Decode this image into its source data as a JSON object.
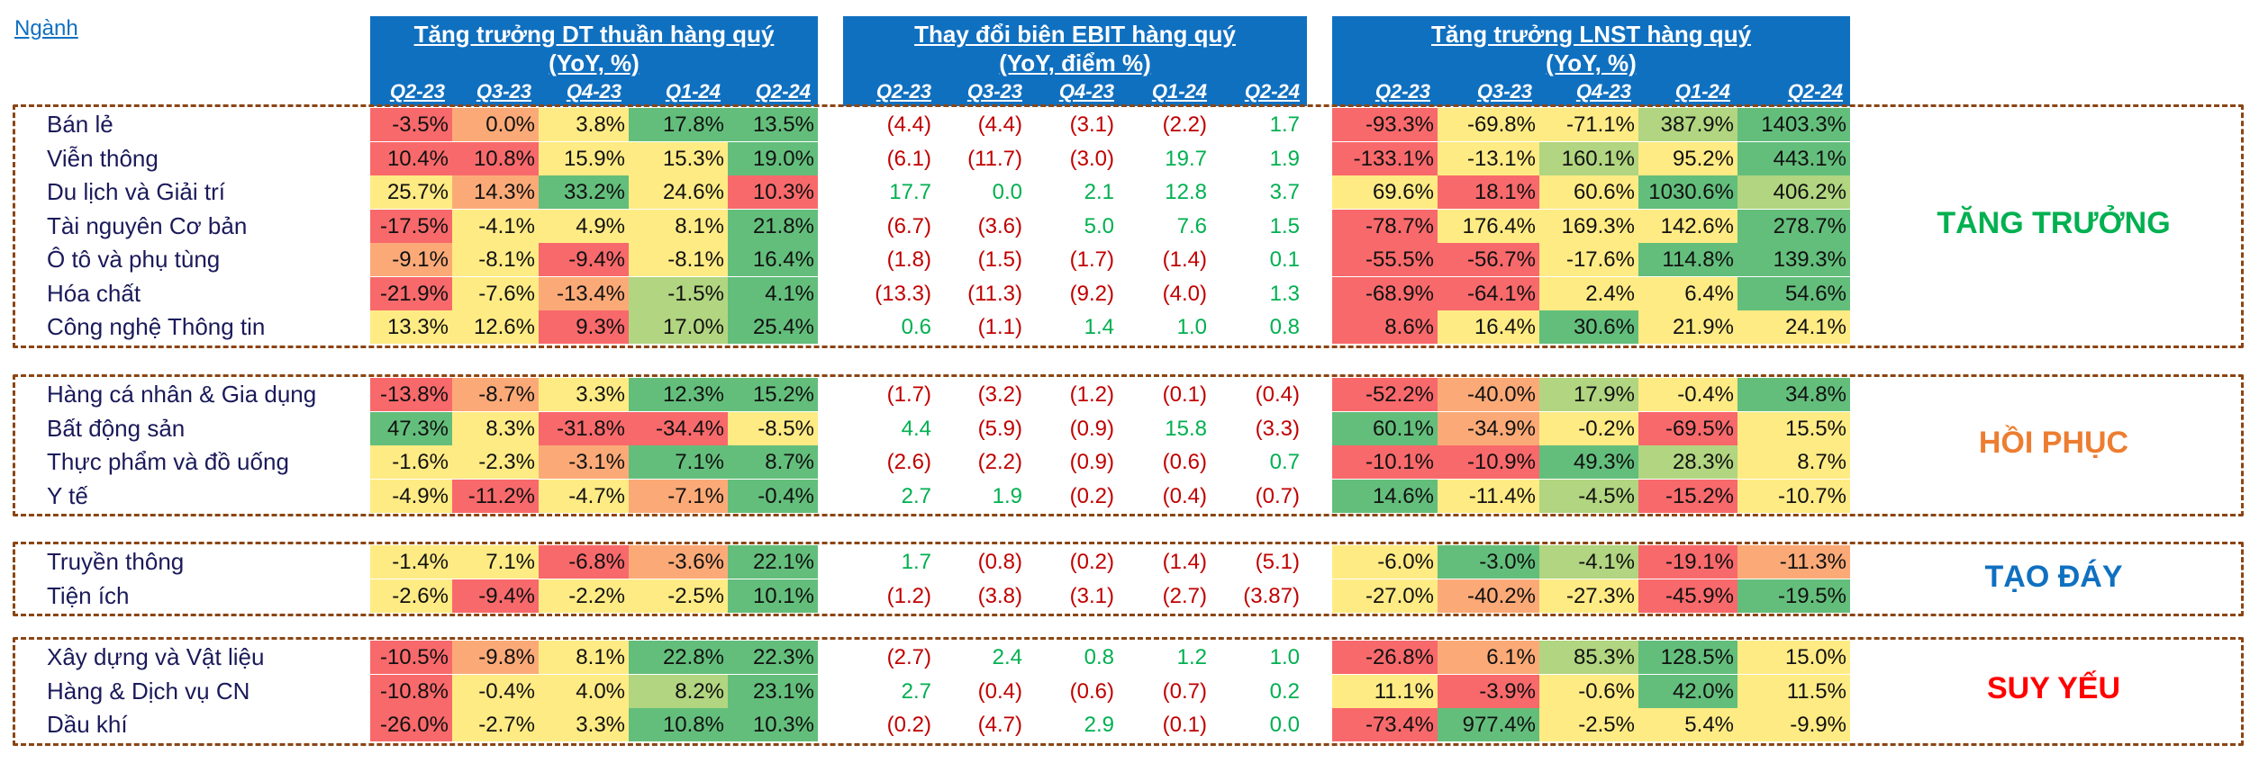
{
  "header": {
    "sector_label": "Ngành",
    "revenue_title_1": "Tăng trưởng DT thuần hàng quý",
    "revenue_title_2": "(YoY, %)",
    "ebit_title_1": "Thay đổi biên EBIT hàng quý",
    "ebit_title_2": "(YoY, điểm %)",
    "npat_title_1": "Tăng trưởng LNST hàng quý",
    "npat_title_2": "(YoY, %)",
    "quarters": [
      "Q2-23",
      "Q3-23",
      "Q4-23",
      "Q1-24",
      "Q2-24"
    ]
  },
  "colors": {
    "header_blue": "#1070C0",
    "red": "#F8696B",
    "orange": "#FBAA77",
    "yellow": "#FFEB84",
    "light_green": "#B1D580",
    "green": "#63BE7B",
    "ebit_positive": "#00B050",
    "ebit_negative": "#C00000",
    "group_growth": "#00B050",
    "group_recovery": "#ED7D31",
    "group_bottoming": "#1070C0",
    "group_weakening": "#FF0000"
  },
  "chart_data": {
    "type": "table",
    "groups": [
      {
        "label": "TĂNG TRƯỞNG",
        "rows": [
          {
            "sector": "Bán lẻ",
            "revenue": [
              "-3.5%",
              "0.0%",
              "3.8%",
              "17.8%",
              "13.5%"
            ],
            "revenue_colors": [
              "red",
              "orange",
              "yellow",
              "green",
              "green"
            ],
            "ebit": [
              "(4.4)",
              "(4.4)",
              "(3.1)",
              "(2.2)",
              "1.7"
            ],
            "npat": [
              "-93.3%",
              "-69.8%",
              "-71.1%",
              "387.9%",
              "1403.3%"
            ],
            "npat_colors": [
              "red",
              "yellow",
              "yellow",
              "light_green",
              "green"
            ]
          },
          {
            "sector": "Viễn thông",
            "revenue": [
              "10.4%",
              "10.8%",
              "15.9%",
              "15.3%",
              "19.0%"
            ],
            "revenue_colors": [
              "red",
              "red",
              "yellow",
              "yellow",
              "green"
            ],
            "ebit": [
              "(6.1)",
              "(11.7)",
              "(3.0)",
              "19.7",
              "1.9"
            ],
            "npat": [
              "-133.1%",
              "-13.1%",
              "160.1%",
              "95.2%",
              "443.1%"
            ],
            "npat_colors": [
              "red",
              "yellow",
              "light_green",
              "yellow",
              "green"
            ]
          },
          {
            "sector": "Du lịch và Giải trí",
            "revenue": [
              "25.7%",
              "14.3%",
              "33.2%",
              "24.6%",
              "10.3%"
            ],
            "revenue_colors": [
              "yellow",
              "orange",
              "green",
              "yellow",
              "red"
            ],
            "ebit": [
              "17.7",
              "0.0",
              "2.1",
              "12.8",
              "3.7"
            ],
            "npat": [
              "69.6%",
              "18.1%",
              "60.6%",
              "1030.6%",
              "406.2%"
            ],
            "npat_colors": [
              "yellow",
              "red",
              "yellow",
              "green",
              "light_green"
            ]
          },
          {
            "sector": "Tài nguyên Cơ bản",
            "revenue": [
              "-17.5%",
              "-4.1%",
              "4.9%",
              "8.1%",
              "21.8%"
            ],
            "revenue_colors": [
              "red",
              "yellow",
              "yellow",
              "yellow",
              "green"
            ],
            "ebit": [
              "(6.7)",
              "(3.6)",
              "5.0",
              "7.6",
              "1.5"
            ],
            "npat": [
              "-78.7%",
              "176.4%",
              "169.3%",
              "142.6%",
              "278.7%"
            ],
            "npat_colors": [
              "red",
              "yellow",
              "yellow",
              "yellow",
              "green"
            ]
          },
          {
            "sector": "Ô tô và phụ tùng",
            "revenue": [
              "-9.1%",
              "-8.1%",
              "-9.4%",
              "-8.1%",
              "16.4%"
            ],
            "revenue_colors": [
              "orange",
              "yellow",
              "red",
              "yellow",
              "green"
            ],
            "ebit": [
              "(1.8)",
              "(1.5)",
              "(1.7)",
              "(1.4)",
              "0.1"
            ],
            "npat": [
              "-55.5%",
              "-56.7%",
              "-17.6%",
              "114.8%",
              "139.3%"
            ],
            "npat_colors": [
              "red",
              "red",
              "yellow",
              "green",
              "green"
            ]
          },
          {
            "sector": "Hóa chất",
            "revenue": [
              "-21.9%",
              "-7.6%",
              "-13.4%",
              "-1.5%",
              "4.1%"
            ],
            "revenue_colors": [
              "red",
              "yellow",
              "orange",
              "light_green",
              "green"
            ],
            "ebit": [
              "(13.3)",
              "(11.3)",
              "(9.2)",
              "(4.0)",
              "1.3"
            ],
            "npat": [
              "-68.9%",
              "-64.1%",
              "2.4%",
              "6.4%",
              "54.6%"
            ],
            "npat_colors": [
              "red",
              "red",
              "yellow",
              "yellow",
              "green"
            ]
          },
          {
            "sector": "Công nghệ Thông tin",
            "revenue": [
              "13.3%",
              "12.6%",
              "9.3%",
              "17.0%",
              "25.4%"
            ],
            "revenue_colors": [
              "yellow",
              "yellow",
              "red",
              "light_green",
              "green"
            ],
            "ebit": [
              "0.6",
              "(1.1)",
              "1.4",
              "1.0",
              "0.8"
            ],
            "npat": [
              "8.6%",
              "16.4%",
              "30.6%",
              "21.9%",
              "24.1%"
            ],
            "npat_colors": [
              "red",
              "yellow",
              "green",
              "yellow",
              "yellow"
            ]
          }
        ]
      },
      {
        "label": "HỒI PHỤC",
        "rows": [
          {
            "sector": "Hàng cá nhân & Gia dụng",
            "revenue": [
              "-13.8%",
              "-8.7%",
              "3.3%",
              "12.3%",
              "15.2%"
            ],
            "revenue_colors": [
              "red",
              "orange",
              "yellow",
              "green",
              "green"
            ],
            "ebit": [
              "(1.7)",
              "(3.2)",
              "(1.2)",
              "(0.1)",
              "(0.4)"
            ],
            "npat": [
              "-52.2%",
              "-40.0%",
              "17.9%",
              "-0.4%",
              "34.8%"
            ],
            "npat_colors": [
              "red",
              "orange",
              "light_green",
              "yellow",
              "green"
            ]
          },
          {
            "sector": "Bất động sản",
            "revenue": [
              "47.3%",
              "8.3%",
              "-31.8%",
              "-34.4%",
              "-8.5%"
            ],
            "revenue_colors": [
              "green",
              "yellow",
              "red",
              "red",
              "yellow"
            ],
            "ebit": [
              "4.4",
              "(5.9)",
              "(0.9)",
              "15.8",
              "(3.3)"
            ],
            "npat": [
              "60.1%",
              "-34.9%",
              "-0.2%",
              "-69.5%",
              "15.5%"
            ],
            "npat_colors": [
              "green",
              "orange",
              "yellow",
              "red",
              "yellow"
            ]
          },
          {
            "sector": "Thực phẩm và đồ uống",
            "revenue": [
              "-1.6%",
              "-2.3%",
              "-3.1%",
              "7.1%",
              "8.7%"
            ],
            "revenue_colors": [
              "yellow",
              "yellow",
              "orange",
              "green",
              "green"
            ],
            "ebit": [
              "(2.6)",
              "(2.2)",
              "(0.9)",
              "(0.6)",
              "0.7"
            ],
            "npat": [
              "-10.1%",
              "-10.9%",
              "49.3%",
              "28.3%",
              "8.7%"
            ],
            "npat_colors": [
              "red",
              "red",
              "green",
              "light_green",
              "yellow"
            ]
          },
          {
            "sector": "Y tế",
            "revenue": [
              "-4.9%",
              "-11.2%",
              "-4.7%",
              "-7.1%",
              "-0.4%"
            ],
            "revenue_colors": [
              "yellow",
              "red",
              "yellow",
              "orange",
              "green"
            ],
            "ebit": [
              "2.7",
              "1.9",
              "(0.2)",
              "(0.4)",
              "(0.7)"
            ],
            "npat": [
              "14.6%",
              "-11.4%",
              "-4.5%",
              "-15.2%",
              "-10.7%"
            ],
            "npat_colors": [
              "green",
              "yellow",
              "light_green",
              "red",
              "yellow"
            ]
          }
        ]
      },
      {
        "label": "TẠO ĐÁY",
        "rows": [
          {
            "sector": "Truyền thông",
            "revenue": [
              "-1.4%",
              "7.1%",
              "-6.8%",
              "-3.6%",
              "22.1%"
            ],
            "revenue_colors": [
              "yellow",
              "yellow",
              "red",
              "orange",
              "green"
            ],
            "ebit": [
              "1.7",
              "(0.8)",
              "(0.2)",
              "(1.4)",
              "(5.1)"
            ],
            "npat": [
              "-6.0%",
              "-3.0%",
              "-4.1%",
              "-19.1%",
              "-11.3%"
            ],
            "npat_colors": [
              "yellow",
              "green",
              "light_green",
              "red",
              "orange"
            ]
          },
          {
            "sector": "Tiện ích",
            "revenue": [
              "-2.6%",
              "-9.4%",
              "-2.2%",
              "-2.5%",
              "10.1%"
            ],
            "revenue_colors": [
              "yellow",
              "red",
              "yellow",
              "yellow",
              "green"
            ],
            "ebit": [
              "(1.2)",
              "(3.8)",
              "(3.1)",
              "(2.7)",
              "(3.87)"
            ],
            "npat": [
              "-27.0%",
              "-40.2%",
              "-27.3%",
              "-45.9%",
              "-19.5%"
            ],
            "npat_colors": [
              "yellow",
              "orange",
              "yellow",
              "red",
              "green"
            ]
          }
        ]
      },
      {
        "label": "SUY YẾU",
        "rows": [
          {
            "sector": "Xây dựng và Vật liệu",
            "revenue": [
              "-10.5%",
              "-9.8%",
              "8.1%",
              "22.8%",
              "22.3%"
            ],
            "revenue_colors": [
              "red",
              "orange",
              "yellow",
              "green",
              "green"
            ],
            "ebit": [
              "(2.7)",
              "2.4",
              "0.8",
              "1.2",
              "1.0"
            ],
            "npat": [
              "-26.8%",
              "6.1%",
              "85.3%",
              "128.5%",
              "15.0%"
            ],
            "npat_colors": [
              "red",
              "orange",
              "light_green",
              "green",
              "yellow"
            ]
          },
          {
            "sector": "Hàng & Dịch vụ CN",
            "revenue": [
              "-10.8%",
              "-0.4%",
              "4.0%",
              "8.2%",
              "23.1%"
            ],
            "revenue_colors": [
              "red",
              "yellow",
              "yellow",
              "light_green",
              "green"
            ],
            "ebit": [
              "2.7",
              "(0.4)",
              "(0.6)",
              "(0.7)",
              "0.2"
            ],
            "npat": [
              "11.1%",
              "-3.9%",
              "-0.6%",
              "42.0%",
              "11.5%"
            ],
            "npat_colors": [
              "yellow",
              "red",
              "yellow",
              "green",
              "yellow"
            ]
          },
          {
            "sector": "Dầu khí",
            "revenue": [
              "-26.0%",
              "-2.7%",
              "3.3%",
              "10.8%",
              "10.3%"
            ],
            "revenue_colors": [
              "red",
              "yellow",
              "yellow",
              "green",
              "green"
            ],
            "ebit": [
              "(0.2)",
              "(4.7)",
              "2.9",
              "(0.1)",
              "0.0"
            ],
            "npat": [
              "-73.4%",
              "977.4%",
              "-2.5%",
              "5.4%",
              "-9.9%"
            ],
            "npat_colors": [
              "red",
              "green",
              "yellow",
              "yellow",
              "yellow"
            ]
          }
        ]
      }
    ]
  }
}
